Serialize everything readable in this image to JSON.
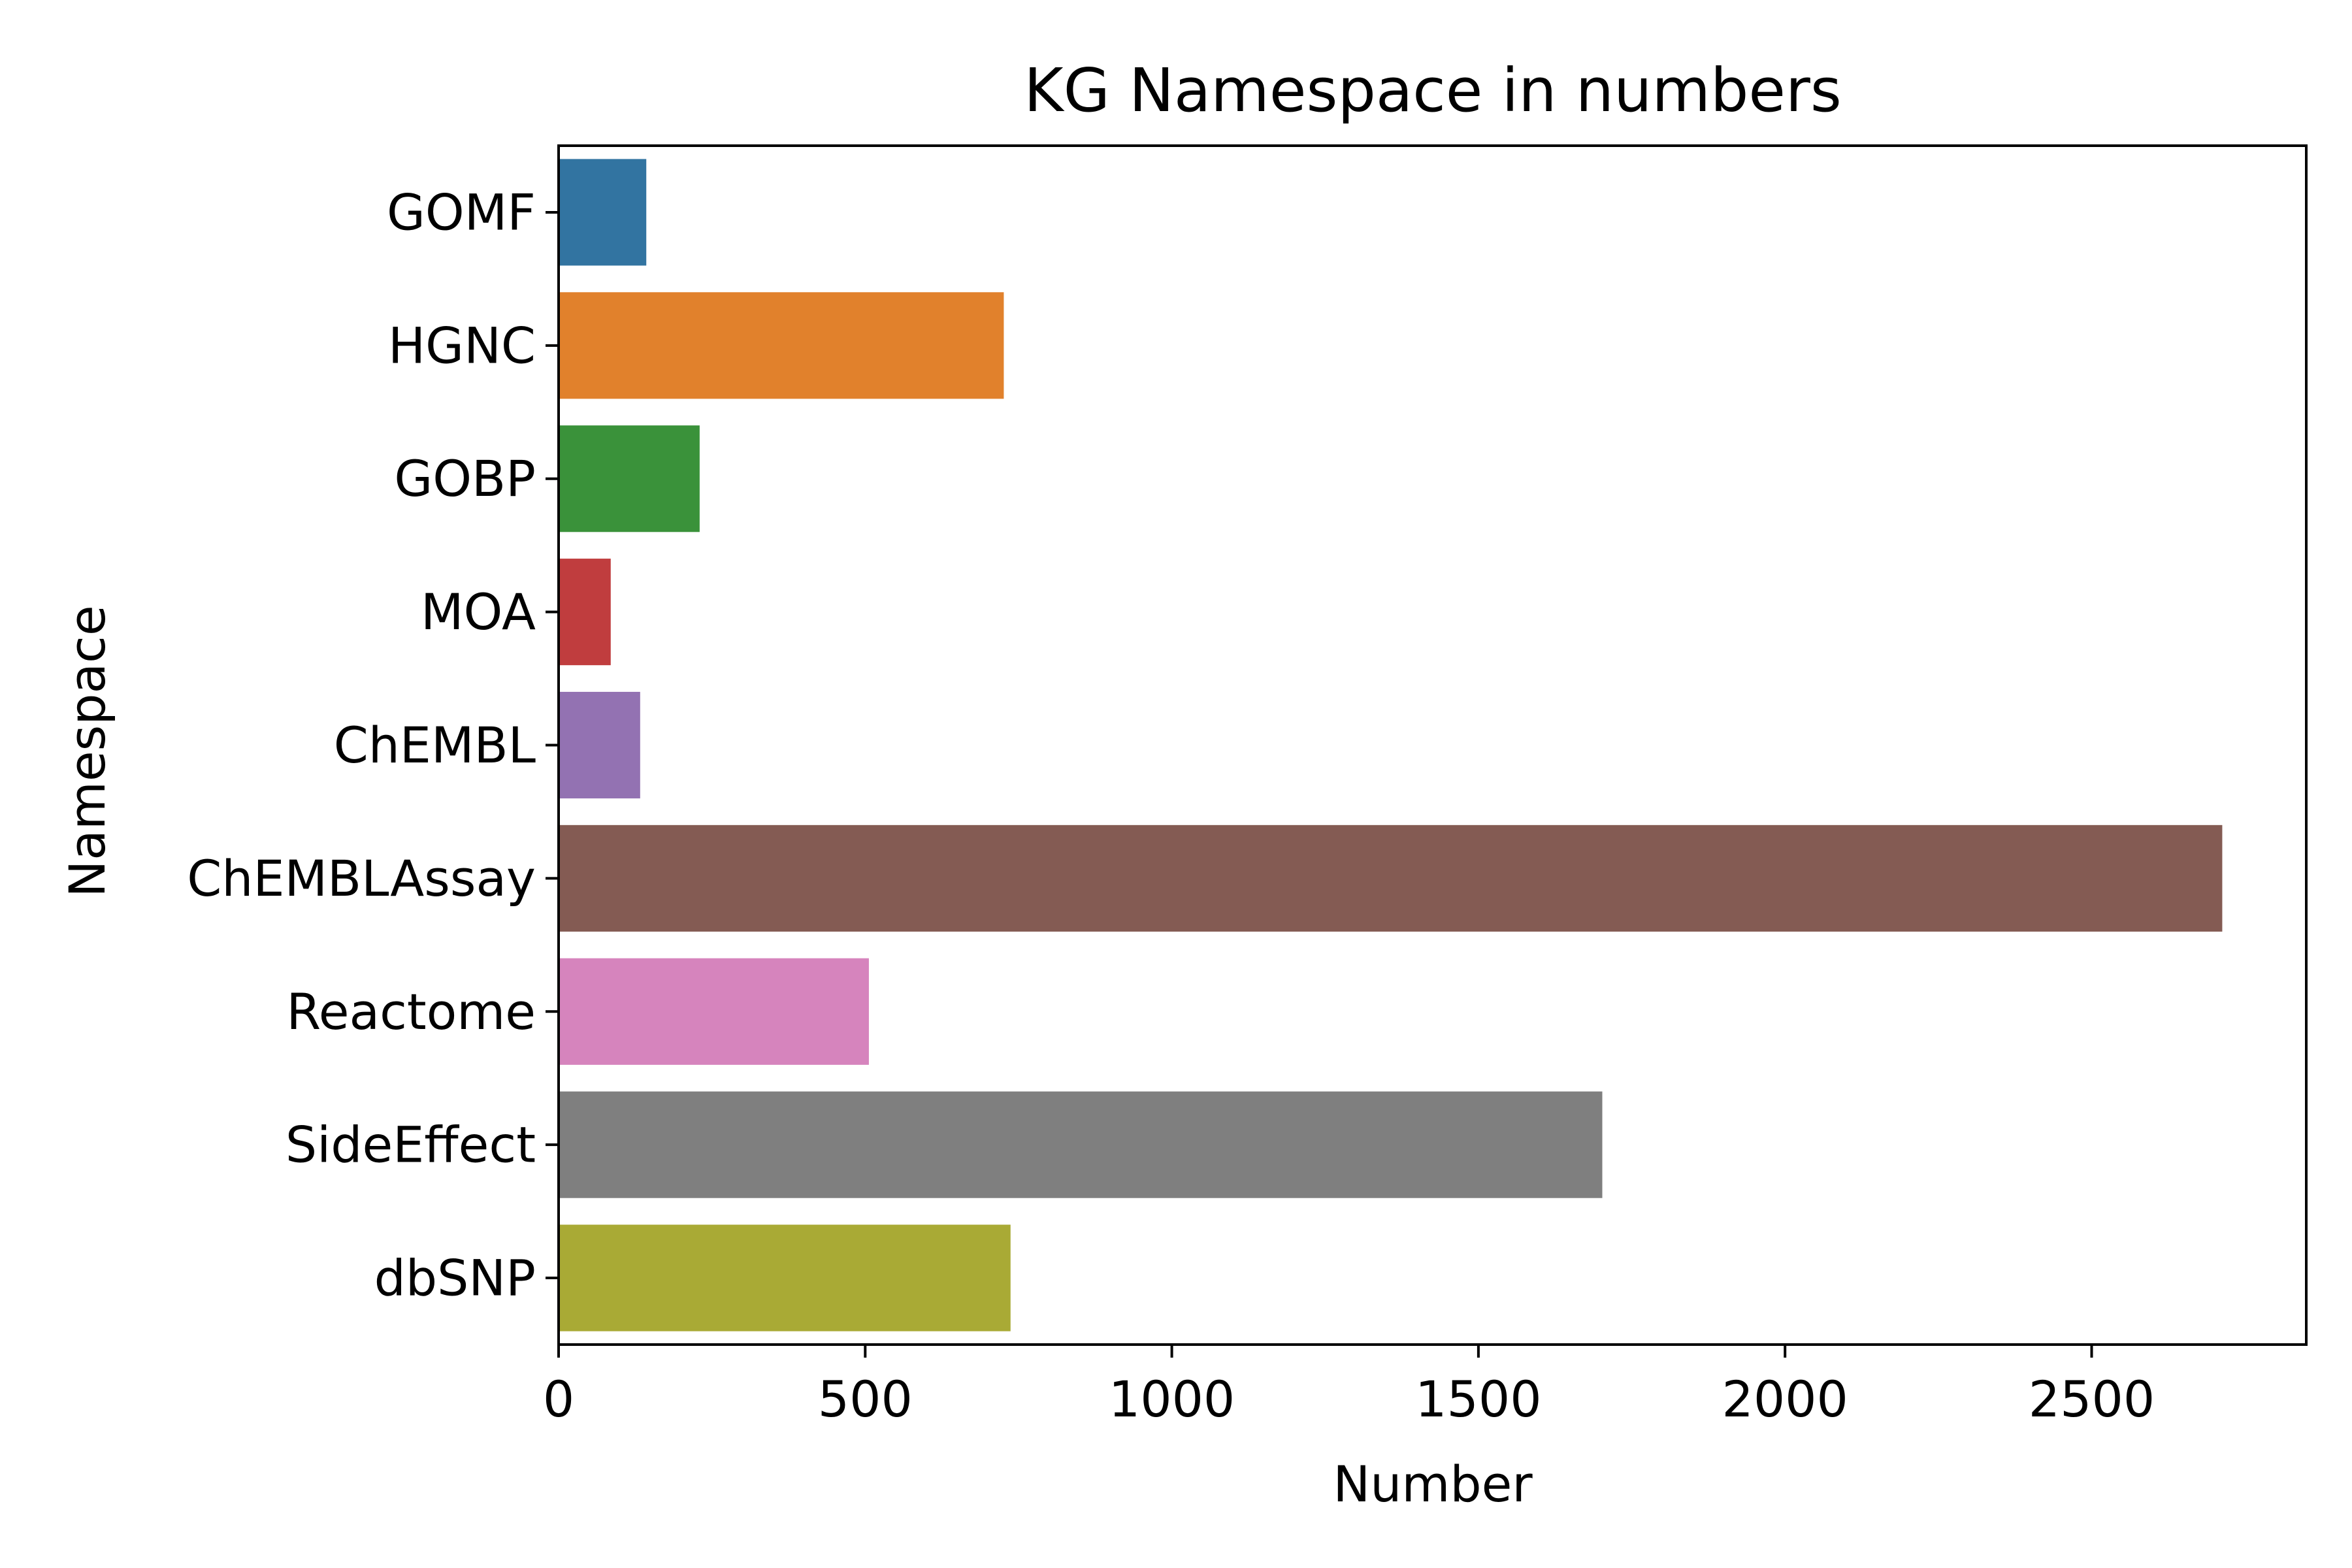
{
  "chart_data": {
    "type": "bar",
    "orientation": "horizontal",
    "title": "KG Namespace in numbers",
    "xlabel": "Number",
    "ylabel": "Namespace",
    "categories": [
      "GOMF",
      "HGNC",
      "GOBP",
      "MOA",
      "ChEMBL",
      "ChEMBLAssay",
      "Reactome",
      "SideEffect",
      "dbSNP"
    ],
    "values": [
      143,
      726,
      230,
      85,
      133,
      2713,
      506,
      1702,
      737
    ],
    "colors": [
      "#3274a1",
      "#e1812c",
      "#3a923a",
      "#c03d3e",
      "#9372b2",
      "#845b53",
      "#d684bd",
      "#7f7f7f",
      "#a9aa35"
    ],
    "xlim": [
      0,
      2850
    ],
    "xticks": [
      0,
      500,
      1000,
      1500,
      2000,
      2500
    ],
    "xtick_labels": [
      "0",
      "500",
      "1000",
      "1500",
      "2000",
      "2500"
    ],
    "grid": false,
    "legend": "none"
  }
}
